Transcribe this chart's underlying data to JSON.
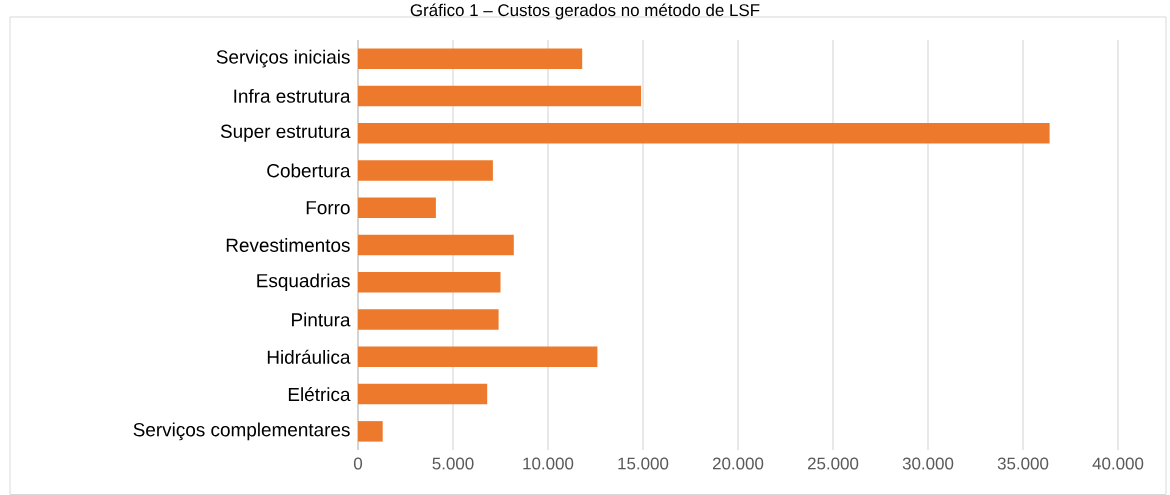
{
  "chart_data": {
    "type": "bar",
    "orientation": "horizontal",
    "title": "Gráfico 1 – Custos gerados no método de LSF",
    "categories": [
      "Serviços iniciais",
      "Infra estrutura",
      "Super estrutura",
      "Cobertura",
      "Forro",
      "Revestimentos",
      "Esquadrias",
      "Pintura",
      "Hidráulica",
      "Elétrica",
      "Serviços complementares"
    ],
    "values": [
      11800,
      14900,
      36400,
      7100,
      4100,
      8200,
      7500,
      7400,
      12600,
      6800,
      1300
    ],
    "color": "#ed7a2c",
    "xlim": [
      0,
      40000
    ],
    "xticks": [
      {
        "value": 0,
        "label": "0"
      },
      {
        "value": 5000,
        "label": "5.000"
      },
      {
        "value": 10000,
        "label": "10.000"
      },
      {
        "value": 15000,
        "label": "15.000"
      },
      {
        "value": 20000,
        "label": "20.000"
      },
      {
        "value": 25000,
        "label": "25.000"
      },
      {
        "value": 30000,
        "label": "30.000"
      },
      {
        "value": 35000,
        "label": "35.000"
      },
      {
        "value": 40000,
        "label": "40.000"
      }
    ],
    "grid": "x"
  }
}
